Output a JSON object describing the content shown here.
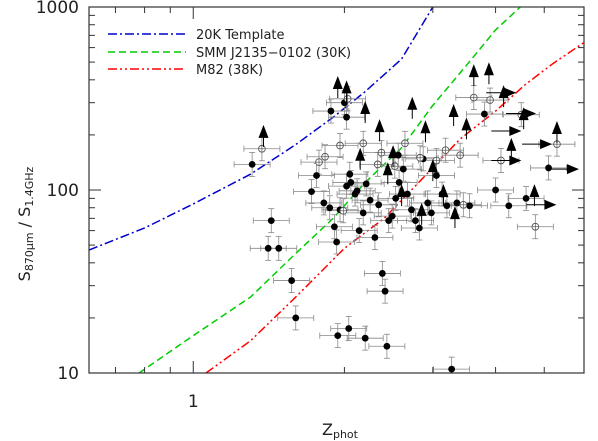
{
  "chart_data": {
    "type": "scatter",
    "title": "",
    "xlabel": "Z",
    "xlabel_sub": "phot",
    "ylabel": "S",
    "ylabel_sub1": "870μm",
    "ylabel_sep": " / ",
    "ylabel_sub2": "1.4GHz",
    "x_scale": "log",
    "y_scale": "log",
    "xlim": [
      0.62,
      6.0
    ],
    "ylim": [
      10,
      1000
    ],
    "x_tick_labels": [
      "1"
    ],
    "y_tick_labels": [
      "10",
      "100",
      "1000"
    ],
    "grid": false,
    "legend_position": "top-left",
    "legend": [
      {
        "name": "20K Template",
        "color": "#0000cc",
        "dash": "dash-dot"
      },
      {
        "name": "SMM J2135−0102 (30K)",
        "color": "#00cc00",
        "dash": "dashed"
      },
      {
        "name": "M82 (38K)",
        "color": "#ff0000",
        "dash": "dash-dot-dot"
      }
    ],
    "series_curves": [
      {
        "name": "20K Template",
        "color": "#0000cc",
        "x": [
          0.62,
          0.8,
          1.0,
          1.3,
          1.6,
          1.9,
          2.2,
          2.6,
          3.0
        ],
        "y": [
          47,
          62,
          84,
          122,
          177,
          250,
          345,
          520,
          1000
        ]
      },
      {
        "name": "SMM J2135−0102 (30K)",
        "color": "#00cc00",
        "x": [
          0.78,
          1.0,
          1.3,
          1.6,
          1.9,
          2.2,
          2.6,
          3.0,
          3.5,
          4.0,
          4.48
        ],
        "y": [
          10,
          16,
          26,
          45,
          70,
          110,
          170,
          290,
          480,
          750,
          1000
        ]
      },
      {
        "name": "M82 (38K)",
        "color": "#ff0000",
        "x": [
          1.06,
          1.3,
          1.6,
          2.0,
          2.4,
          2.9,
          3.4,
          4.0,
          4.6,
          5.2,
          6.0
        ],
        "y": [
          10,
          15,
          26,
          48,
          70,
          120,
          190,
          270,
          380,
          490,
          640
        ]
      }
    ],
    "points_filled": [
      [
        1.31,
        138
      ],
      [
        1.43,
        68
      ],
      [
        1.41,
        48
      ],
      [
        1.48,
        48
      ],
      [
        1.57,
        32
      ],
      [
        1.6,
        20
      ],
      [
        1.72,
        98
      ],
      [
        1.76,
        120
      ],
      [
        1.82,
        85
      ],
      [
        1.87,
        80
      ],
      [
        1.91,
        63
      ],
      [
        1.93,
        52
      ],
      [
        1.96,
        78
      ],
      [
        2.02,
        105
      ],
      [
        2.06,
        110
      ],
      [
        2.1,
        95
      ],
      [
        2.12,
        99
      ],
      [
        2.14,
        60
      ],
      [
        2.18,
        75
      ],
      [
        2.21,
        108
      ],
      [
        2.25,
        88
      ],
      [
        2.3,
        55
      ],
      [
        2.34,
        83
      ],
      [
        2.38,
        35
      ],
      [
        2.41,
        28
      ],
      [
        2.45,
        68
      ],
      [
        2.49,
        72
      ],
      [
        2.53,
        90
      ],
      [
        2.57,
        110
      ],
      [
        2.62,
        130
      ],
      [
        2.67,
        95
      ],
      [
        2.72,
        78
      ],
      [
        2.77,
        68
      ],
      [
        2.82,
        62
      ],
      [
        2.87,
        148
      ],
      [
        2.93,
        85
      ],
      [
        2.98,
        75
      ],
      [
        3.05,
        120
      ],
      [
        3.13,
        95
      ],
      [
        3.2,
        82
      ],
      [
        3.35,
        85
      ],
      [
        3.55,
        82
      ],
      [
        3.8,
        260
      ],
      [
        4.0,
        100
      ],
      [
        4.25,
        82
      ],
      [
        4.6,
        90
      ],
      [
        5.1,
        132
      ],
      [
        1.88,
        270
      ],
      [
        2.0,
        300
      ],
      [
        2.02,
        250
      ],
      [
        1.94,
        16
      ],
      [
        2.04,
        17.5
      ],
      [
        2.2,
        15.5
      ],
      [
        2.43,
        14
      ],
      [
        3.27,
        10.5
      ],
      [
        2.05,
        122
      ],
      [
        2.56,
        155
      ]
    ],
    "points_open": [
      [
        1.37,
        168
      ],
      [
        1.78,
        142
      ],
      [
        1.83,
        152
      ],
      [
        1.96,
        175
      ],
      [
        2.03,
        315
      ],
      [
        2.18,
        180
      ],
      [
        2.33,
        138
      ],
      [
        2.37,
        160
      ],
      [
        2.52,
        135
      ],
      [
        2.64,
        180
      ],
      [
        2.83,
        150
      ],
      [
        3.05,
        145
      ],
      [
        3.18,
        165
      ],
      [
        3.4,
        155
      ],
      [
        3.62,
        320
      ],
      [
        3.9,
        310
      ],
      [
        4.1,
        145
      ],
      [
        4.5,
        258
      ],
      [
        4.8,
        63
      ],
      [
        5.3,
        178
      ],
      [
        3.45,
        83
      ],
      [
        1.99,
        77
      ]
    ],
    "arrows_up": [
      [
        1.38,
        200
      ],
      [
        1.94,
        370
      ],
      [
        2.02,
        350
      ],
      [
        2.2,
        270
      ],
      [
        2.35,
        215
      ],
      [
        2.5,
        155
      ],
      [
        2.73,
        285
      ],
      [
        2.9,
        212
      ],
      [
        3.0,
        130
      ],
      [
        3.15,
        95
      ],
      [
        3.32,
        72
      ],
      [
        3.62,
        430
      ],
      [
        3.88,
        440
      ],
      [
        4.15,
        330
      ],
      [
        4.55,
        250
      ],
      [
        4.78,
        95
      ],
      [
        5.3,
        210
      ],
      [
        2.6,
        95
      ],
      [
        3.3,
        260
      ],
      [
        2.15,
        150
      ],
      [
        2.44,
        125
      ],
      [
        3.5,
        220
      ],
      [
        4.3,
        170
      ],
      [
        2.85,
        75
      ]
    ],
    "arrows_right": [
      [
        4.2,
        340
      ],
      [
        4.6,
        262
      ],
      [
        4.95,
        178
      ],
      [
        5.6,
        130
      ],
      [
        4.3,
        145
      ],
      [
        5.05,
        83
      ],
      [
        4.3,
        210
      ]
    ]
  }
}
